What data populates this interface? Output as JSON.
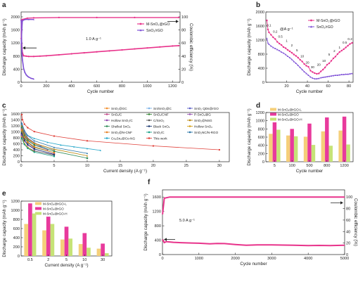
{
  "colors": {
    "pink": "#e8338b",
    "purple": "#7d4fd6",
    "red": "#e0413a",
    "orange": "#f6a13a",
    "gold": "#f5cf7a",
    "magenta": "#e83a9c",
    "lightgreen": "#c6e377"
  },
  "chart_data": [
    {
      "id": "a",
      "panel": "a",
      "type": "line",
      "xlabel": "Cycle number",
      "ylabel": "Discharge capacity (mAh g⁻¹)",
      "y2label": "Coulombic efficiency (%)",
      "xlim": [
        0,
        1260
      ],
      "ylim": [
        0,
        2150
      ],
      "y2lim": [
        0,
        107.5
      ],
      "xticks": [
        0,
        200,
        400,
        600,
        800,
        1000,
        1200
      ],
      "yticks": [
        0,
        400,
        800,
        1200,
        1600,
        2000
      ],
      "y2ticks": [
        0,
        20,
        40,
        60,
        80,
        100
      ],
      "annotation": "1.0 A g⁻¹",
      "legend": [
        "M-SnO₂@rGO",
        "SnO₂/rGO"
      ],
      "series": [
        {
          "name": "M-SnO₂@rGO",
          "kind": "capacity",
          "color": "#e8338b",
          "x": [
            1,
            5,
            10,
            20,
            40,
            60,
            100,
            150,
            200,
            300,
            400,
            500,
            600,
            700,
            800,
            900,
            1000,
            1100,
            1200,
            1250
          ],
          "y": [
            1900,
            1150,
            900,
            810,
            800,
            790,
            790,
            800,
            810,
            840,
            870,
            900,
            930,
            960,
            990,
            1020,
            1050,
            1080,
            1110,
            1120
          ]
        },
        {
          "name": "SnO₂/rGO",
          "kind": "capacity",
          "color": "#7d4fd6",
          "x": [
            1,
            5,
            10,
            20,
            30,
            40,
            50,
            60,
            80,
            100
          ],
          "y": [
            1900,
            1000,
            700,
            420,
            300,
            230,
            190,
            160,
            120,
            100
          ]
        },
        {
          "name": "M-SnO₂@rGO",
          "kind": "efficiency",
          "color": "#e8338b",
          "x": [
            1,
            10,
            50,
            100,
            300,
            600,
            900,
            1250
          ],
          "y": [
            67,
            96,
            98,
            98.5,
            99,
            99,
            99,
            99
          ]
        },
        {
          "name": "SnO₂/rGO",
          "kind": "efficiency",
          "color": "#7d4fd6",
          "x": [
            1,
            10,
            30,
            60,
            100
          ],
          "y": [
            60,
            94,
            96,
            96,
            96
          ]
        }
      ]
    },
    {
      "id": "b",
      "panel": "b",
      "type": "line",
      "xlabel": "Cycle number",
      "ylabel": "Discharge capacity (mAh g⁻¹)",
      "xlim": [
        0,
        84
      ],
      "ylim": [
        0,
        2000
      ],
      "xticks": [
        20,
        40,
        60,
        80
      ],
      "yticks": [
        0,
        400,
        800,
        1200,
        1600,
        2000
      ],
      "annotation": "@A g⁻¹",
      "legend": [
        "M-SnO₂@rGO",
        "SnO₂/rGO"
      ],
      "rate_labels": [
        {
          "text": "0.1",
          "x": 3,
          "y": 1590
        },
        {
          "text": "0.2",
          "x": 9,
          "y": 1410
        },
        {
          "text": "0.5",
          "x": 14,
          "y": 1270
        },
        {
          "text": "1",
          "x": 20,
          "y": 1150
        },
        {
          "text": "2",
          "x": 25,
          "y": 1020
        },
        {
          "text": "5",
          "x": 30,
          "y": 880
        },
        {
          "text": "10",
          "x": 35,
          "y": 710
        },
        {
          "text": "20",
          "x": 40,
          "y": 530
        },
        {
          "text": "30",
          "x": 45,
          "y": 400
        },
        {
          "text": "20",
          "x": 51,
          "y": 470
        },
        {
          "text": "10",
          "x": 56,
          "y": 580
        },
        {
          "text": "5",
          "x": 61,
          "y": 760
        },
        {
          "text": "2",
          "x": 66,
          "y": 860
        },
        {
          "text": "1",
          "x": 71,
          "y": 960
        },
        {
          "text": "0.5",
          "x": 76,
          "y": 1100
        },
        {
          "text": "0.2",
          "x": 81,
          "y": 1200
        }
      ],
      "series": [
        {
          "name": "M-SnO₂@rGO",
          "color": "#e8338b",
          "x": [
            1,
            2,
            3,
            5,
            7,
            9,
            11,
            13,
            15,
            17,
            19,
            21,
            23,
            25,
            27,
            29,
            31,
            33,
            35,
            37,
            39,
            41,
            43,
            45,
            47,
            49,
            51,
            53,
            55,
            57,
            59,
            61,
            63,
            65,
            67,
            69,
            71,
            73,
            75,
            77,
            79,
            81,
            83
          ],
          "y": [
            1760,
            1500,
            1420,
            1350,
            1280,
            1230,
            1150,
            1100,
            1060,
            1000,
            970,
            920,
            880,
            840,
            790,
            750,
            700,
            640,
            590,
            520,
            470,
            440,
            330,
            290,
            260,
            240,
            250,
            310,
            360,
            420,
            500,
            540,
            610,
            680,
            730,
            800,
            860,
            900,
            940,
            990,
            1040,
            1090,
            1120
          ]
        },
        {
          "name": "SnO₂/rGO",
          "color": "#7d4fd6",
          "x": [
            1,
            2,
            3,
            5,
            7,
            9,
            11,
            13,
            15,
            17,
            19,
            21,
            23,
            25,
            27,
            29,
            31,
            33,
            35,
            37,
            39,
            41,
            43,
            45,
            47,
            49,
            51,
            53,
            55,
            57,
            59,
            61,
            63,
            65,
            67,
            69,
            71,
            73,
            75,
            77,
            79,
            81,
            83
          ],
          "y": [
            1250,
            1120,
            1080,
            1030,
            990,
            960,
            930,
            900,
            860,
            830,
            790,
            740,
            700,
            650,
            590,
            540,
            480,
            420,
            360,
            300,
            250,
            200,
            150,
            120,
            100,
            100,
            110,
            130,
            140,
            150,
            160,
            170,
            180,
            190,
            200,
            200,
            210,
            220,
            220,
            230,
            230,
            240,
            250
          ]
        }
      ]
    },
    {
      "id": "c",
      "panel": "c",
      "type": "line",
      "xlabel": "Current density (A g⁻¹)",
      "ylabel": "Discharge capacity (mAh g⁻¹)",
      "xlim": [
        0,
        31.5
      ],
      "ylim": [
        0,
        1650
      ],
      "xticks": [
        0,
        5,
        10,
        15,
        20,
        25,
        30
      ],
      "yticks": [
        0,
        200,
        400,
        600,
        800,
        1000,
        1200,
        1400,
        1600
      ],
      "legend_rows": [
        [
          "SnO₂@GC",
          "Sn/SnO₂@C",
          "SnO₂ QDs@rGO"
        ],
        [
          "SnOₓ/C",
          "SnO₂/CNF",
          "P-SnO₂@G"
        ],
        [
          "Hollow SnO₂/C",
          "C/SnO₂",
          "SnO₂@NSG"
        ],
        [
          "Shelled SnO₂",
          "Black SnOₓ",
          "Hollow SnO₂"
        ],
        [
          "SnO₂@N-CNF",
          "SnO₂/C",
          "SnO₂NC/N-RGO"
        ],
        [
          "Co₂Sn₂@Co-NG",
          "This work",
          ""
        ]
      ],
      "series": [
        {
          "name": "This work",
          "color": "#e0413a",
          "x": [
            0.1,
            0.2,
            0.5,
            1,
            2,
            5,
            10,
            20,
            30
          ],
          "y": [
            1580,
            1410,
            1260,
            1140,
            1010,
            860,
            700,
            530,
            400
          ]
        },
        {
          "name": "Co₂Sn₂@Co-NG",
          "color": "#27a7c9",
          "x": [
            0.1,
            0.2,
            0.5,
            1,
            2,
            4,
            6,
            8,
            10,
            12
          ],
          "y": [
            1250,
            1100,
            980,
            880,
            780,
            650,
            560,
            500,
            440,
            380
          ]
        },
        {
          "name": "SnO₂@GC",
          "color": "#f28e2b",
          "x": [
            0.1,
            0.5,
            1,
            2,
            5
          ],
          "y": [
            1100,
            900,
            760,
            600,
            380
          ]
        },
        {
          "name": "Sn/SnO₂@C",
          "color": "#7cb3e8",
          "x": [
            0.1,
            0.5,
            1,
            2,
            5
          ],
          "y": [
            1050,
            850,
            700,
            560,
            400
          ]
        },
        {
          "name": "SnO₂ QDs@rGO",
          "color": "#5b5fc7",
          "x": [
            0.1,
            0.5,
            1,
            2,
            3
          ],
          "y": [
            1300,
            1000,
            800,
            640,
            520
          ]
        },
        {
          "name": "SnOₓ/C",
          "color": "#c64b8c",
          "x": [
            0.1,
            0.5,
            1,
            2
          ],
          "y": [
            1100,
            800,
            640,
            460
          ]
        },
        {
          "name": "SnO₂/CNF",
          "color": "#3a8a3a",
          "x": [
            0.1,
            0.5,
            1,
            2,
            5
          ],
          "y": [
            1000,
            780,
            640,
            480,
            300
          ]
        },
        {
          "name": "P-SnO₂@G",
          "color": "#9b59b6",
          "x": [
            0.1,
            0.5,
            1,
            2,
            4
          ],
          "y": [
            1200,
            900,
            730,
            560,
            400
          ]
        },
        {
          "name": "Hollow SnO₂/C",
          "color": "#8e44ad",
          "x": [
            0.1,
            0.5,
            1,
            2,
            5
          ],
          "y": [
            900,
            700,
            560,
            420,
            260
          ]
        },
        {
          "name": "C/SnO₂",
          "color": "#555555",
          "x": [
            0.1,
            0.5,
            1,
            2,
            5
          ],
          "y": [
            800,
            600,
            480,
            360,
            220
          ]
        },
        {
          "name": "SnO₂@NSG",
          "color": "#b8860b",
          "x": [
            0.1,
            0.5,
            1,
            2,
            5,
            10
          ],
          "y": [
            1200,
            950,
            780,
            620,
            420,
            200
          ]
        },
        {
          "name": "Shelled SnO₂",
          "color": "#2e8b57",
          "x": [
            0.1,
            0.5,
            1,
            2,
            5,
            10
          ],
          "y": [
            1150,
            880,
            720,
            560,
            350,
            120
          ]
        },
        {
          "name": "Black SnOₓ",
          "color": "#1f3b73",
          "x": [
            0.1,
            0.5,
            1,
            2,
            5
          ],
          "y": [
            950,
            720,
            580,
            430,
            240
          ]
        },
        {
          "name": "Hollow SnO₂",
          "color": "#d4a017",
          "x": [
            0.1,
            0.5,
            1,
            2
          ],
          "y": [
            850,
            620,
            480,
            330
          ]
        },
        {
          "name": "SnO₂@N-CNF",
          "color": "#e67e22",
          "x": [
            0.1,
            0.5,
            1,
            2,
            5
          ],
          "y": [
            1050,
            820,
            660,
            500,
            300
          ]
        },
        {
          "name": "SnO₂/C",
          "color": "#16a085",
          "x": [
            0.1,
            0.5,
            1,
            2,
            5
          ],
          "y": [
            780,
            580,
            450,
            320,
            180
          ]
        },
        {
          "name": "SnO₂NC/N-RGO",
          "color": "#2874a6",
          "x": [
            0.1,
            0.5,
            1,
            2,
            5,
            10
          ],
          "y": [
            1300,
            1050,
            880,
            700,
            480,
            280
          ]
        }
      ]
    },
    {
      "id": "d",
      "panel": "d",
      "type": "bar",
      "xlabel": "Cycle number",
      "ylabel": "Discharge capacity (mAh g⁻¹)",
      "ylim": [
        0,
        1200
      ],
      "yticks": [
        0,
        200,
        400,
        600,
        800,
        1000,
        1200
      ],
      "categories": [
        "5",
        "100",
        "500",
        "800",
        "1200"
      ],
      "series": [
        {
          "name": "M-SnO₂@rGO-L",
          "color": "#f5cf7a",
          "values": [
            680,
            640,
            610,
            740,
            760
          ]
        },
        {
          "name": "M-SnO₂@rGO",
          "color": "#e83a9c",
          "values": [
            960,
            800,
            930,
            1080,
            1100
          ]
        },
        {
          "name": "M-SnO₂@rGO-H",
          "color": "#c6e377",
          "values": [
            780,
            620,
            410,
            390,
            420
          ]
        }
      ]
    },
    {
      "id": "e",
      "panel": "e",
      "type": "bar",
      "xlabel": "Current density (A g⁻¹)",
      "ylabel": "Discharge capacity (mAh g⁻¹)",
      "ylim": [
        0,
        1200
      ],
      "yticks": [
        0,
        200,
        400,
        600,
        800,
        1000,
        1200
      ],
      "categories": [
        "0.5",
        "2",
        "5",
        "10",
        "30"
      ],
      "series": [
        {
          "name": "M-SnO₂@rGO-L",
          "color": "#f5cf7a",
          "values": [
            700,
            560,
            360,
            260,
            160
          ]
        },
        {
          "name": "M-SnO₂@rGO",
          "color": "#e83a9c",
          "values": [
            1150,
            860,
            640,
            500,
            270
          ]
        },
        {
          "name": "M-SnO₂@rGO-H",
          "color": "#c6e377",
          "values": [
            930,
            700,
            380,
            180,
            60
          ]
        }
      ]
    },
    {
      "id": "f",
      "panel": "f",
      "type": "line",
      "xlabel": "Cycle number",
      "ylabel": "Discharge capacity (mAh g⁻¹)",
      "y2label": "Coulombic efficiency (%)",
      "xlim": [
        0,
        5000
      ],
      "ylim": [
        0,
        1800
      ],
      "y2lim": [
        0,
        112.5
      ],
      "xticks": [
        0,
        1000,
        2000,
        3000,
        4000,
        5000
      ],
      "yticks": [
        0,
        400,
        800,
        1200,
        1600
      ],
      "y2ticks": [
        0,
        20,
        40,
        60,
        80,
        100
      ],
      "annotation": "5.0 A g⁻¹",
      "series": [
        {
          "name": "capacity",
          "kind": "capacity",
          "color": "#e8338b",
          "x": [
            1,
            50,
            100,
            300,
            500,
            800,
            1000,
            1300,
            1500,
            1700,
            2000,
            2300,
            2600,
            3000,
            3300,
            3600,
            4000,
            4300,
            4600,
            5000
          ],
          "y": [
            420,
            330,
            360,
            340,
            330,
            320,
            315,
            300,
            310,
            305,
            280,
            260,
            270,
            270,
            265,
            260,
            250,
            255,
            250,
            260
          ]
        },
        {
          "name": "efficiency",
          "kind": "efficiency",
          "color": "#e8338b",
          "x": [
            1,
            50,
            200,
            1000,
            2000,
            3000,
            4000,
            5000
          ],
          "y": [
            70,
            98,
            100,
            100,
            100,
            100,
            100,
            100
          ]
        }
      ]
    }
  ]
}
